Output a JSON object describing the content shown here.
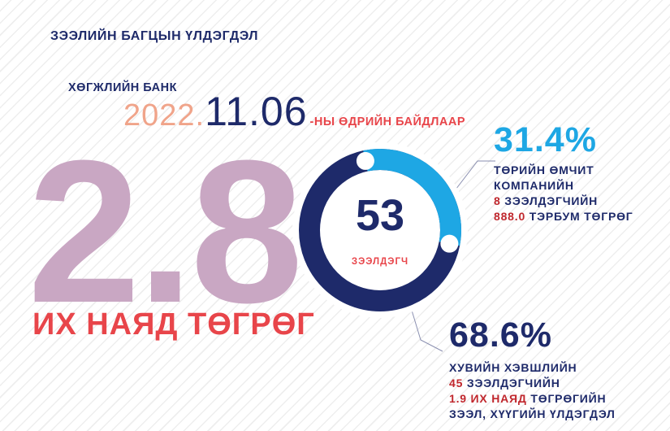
{
  "title": "ЗЭЭЛИЙН БАГЦЫН ҮЛДЭГДЭЛ",
  "bank": "ХӨГЖЛИЙН БАНК",
  "date": {
    "year": "2022.",
    "month_day": "11.06",
    "suffix": "-НЫ ӨДРИЙН БАЙДЛААР"
  },
  "total": {
    "value": "2.8",
    "unit": "ИХ НАЯД ТӨГРӨГ"
  },
  "center": {
    "count": "53",
    "label": "ЗЭЭЛДЭГЧ"
  },
  "segments": [
    {
      "percent": "31.4%",
      "share": 0.314,
      "color": "#1ea7e4",
      "line1": "ТӨРИЙН ӨМЧИТ",
      "line2": "КОМПАНИЙН",
      "count": "8",
      "count_suffix": "ЗЭЭЛДЭГЧИЙН",
      "amount": "888.0",
      "amount_suffix": "ТЭРБУМ ТӨГРӨГ"
    },
    {
      "percent": "68.6%",
      "share": 0.686,
      "color": "#1e2a6a",
      "line1": "ХУВИЙН ХЭВШЛИЙН",
      "count": "45",
      "count_suffix": "ЗЭЭЛДЭГЧИЙН",
      "amount": "1.9 ИХ НАЯД",
      "amount_suffix": "ТӨГРӨГИЙН",
      "line4": "ЗЭЭЛ, ХҮҮГИЙН ҮЛДЭГДЭЛ"
    }
  ]
}
